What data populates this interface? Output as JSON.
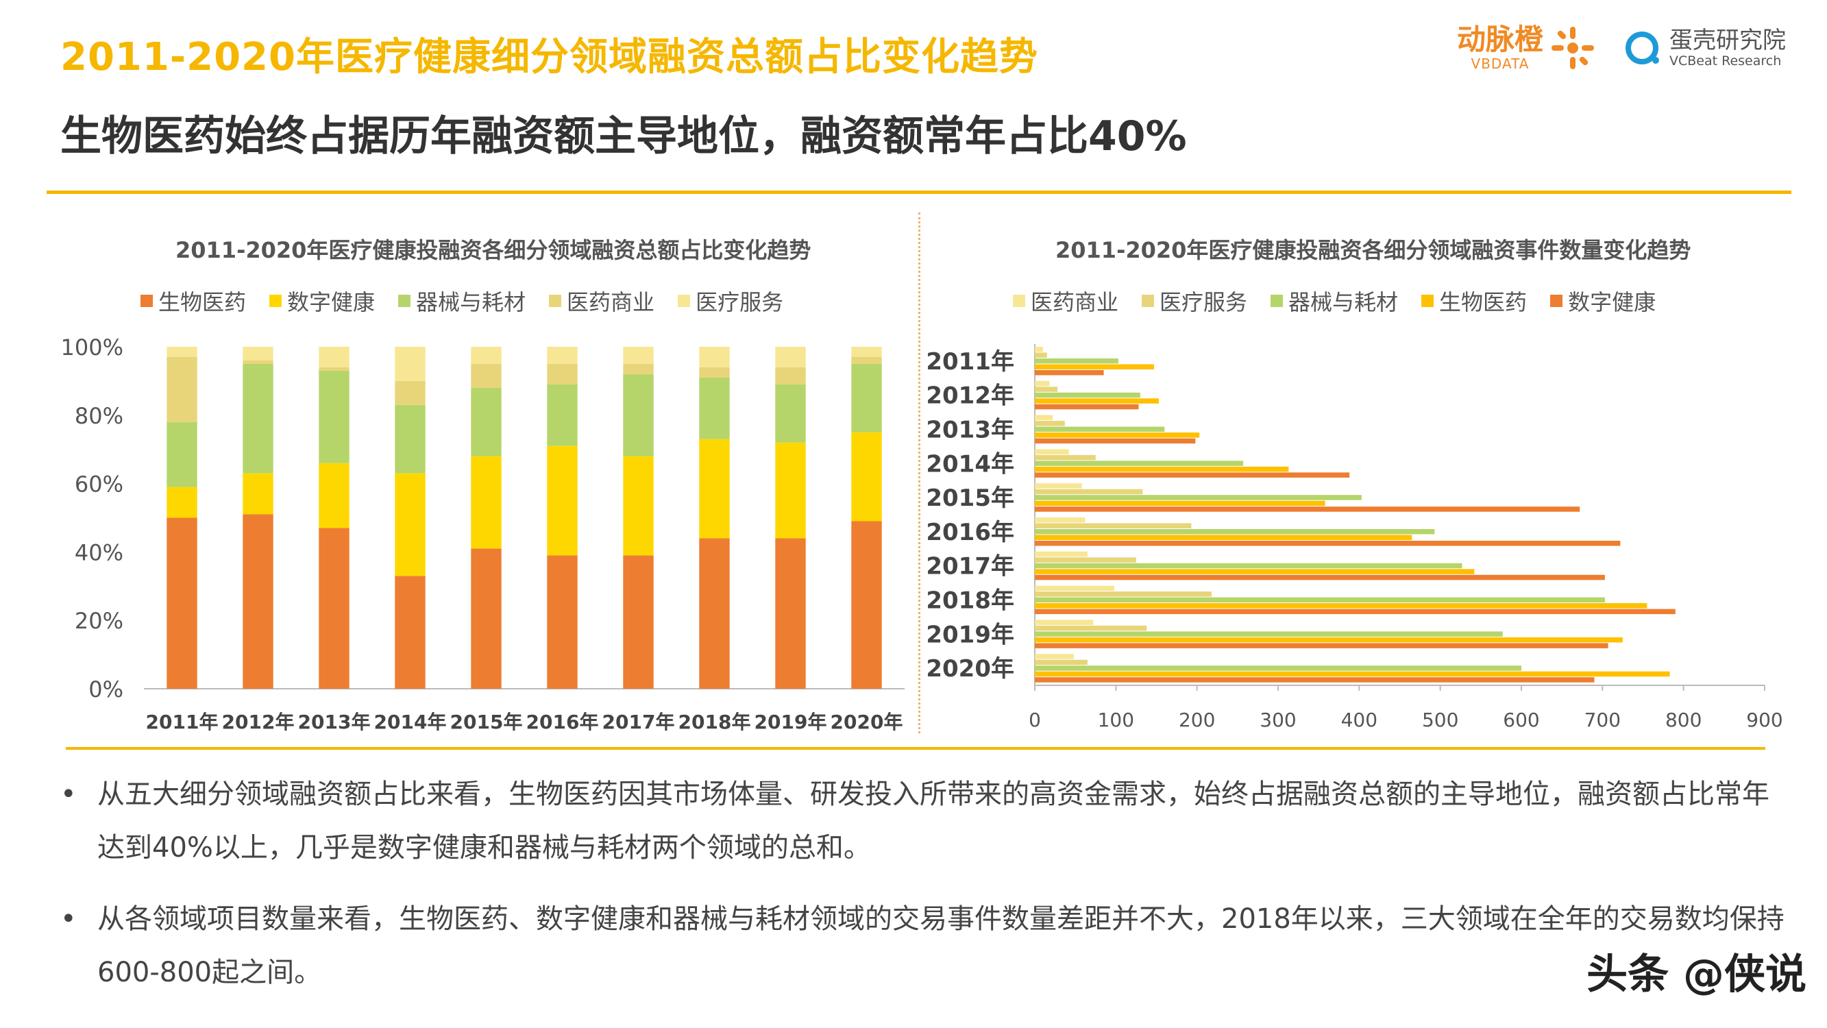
{
  "header": {
    "title": "2011-2020年医疗健康细分领域融资总额占比变化趋势",
    "subtitle": "生物医药始终占据历年融资额主导地位，融资额常年占比40%"
  },
  "logos": {
    "logo1_cn": "动脉橙",
    "logo1_en": "VBDATA",
    "logo2_cn": "蛋壳研究院",
    "logo2_en": "VCBeat Research"
  },
  "colors": {
    "accent": "#F5B700",
    "bio": "#ED7D31",
    "digital": "#FFD700",
    "device": "#B5D56A",
    "commerce": "#E8D57A",
    "service": "#F7E694"
  },
  "chart_data": [
    {
      "type": "bar",
      "stacked": true,
      "percent": true,
      "title": "2011-2020年医疗健康投融资各细分领域融资总额占比变化趋势",
      "categories": [
        "2011年",
        "2012年",
        "2013年",
        "2014年",
        "2015年",
        "2016年",
        "2017年",
        "2018年",
        "2019年",
        "2020年"
      ],
      "ylim": [
        0,
        100
      ],
      "yticks": [
        "0%",
        "20%",
        "40%",
        "60%",
        "80%",
        "100%"
      ],
      "series": [
        {
          "name": "生物医药",
          "values": [
            50,
            51,
            47,
            33,
            41,
            39,
            39,
            44,
            44,
            49
          ]
        },
        {
          "name": "数字健康",
          "values": [
            9,
            12,
            19,
            30,
            27,
            32,
            29,
            29,
            28,
            26
          ]
        },
        {
          "name": "器械与耗材",
          "values": [
            19,
            32,
            27,
            20,
            20,
            18,
            24,
            18,
            17,
            20
          ]
        },
        {
          "name": "医药商业",
          "values": [
            19,
            1,
            1,
            7,
            7,
            6,
            3,
            3,
            5,
            2
          ]
        },
        {
          "name": "医疗服务",
          "values": [
            3,
            4,
            6,
            10,
            5,
            5,
            5,
            6,
            6,
            3
          ]
        }
      ],
      "legend": [
        "生物医药",
        "数字健康",
        "器械与耗材",
        "医药商业",
        "医疗服务"
      ]
    },
    {
      "type": "bar",
      "orientation": "horizontal",
      "title": "2011-2020年医疗健康投融资各细分领域融资事件数量变化趋势",
      "categories": [
        "2011年",
        "2012年",
        "2013年",
        "2014年",
        "2015年",
        "2016年",
        "2017年",
        "2018年",
        "2019年",
        "2020年"
      ],
      "xlim": [
        0,
        900
      ],
      "xticks": [
        "0",
        "100",
        "200",
        "300",
        "400",
        "500",
        "600",
        "700",
        "800",
        "900"
      ],
      "series": [
        {
          "name": "医药商业",
          "values": [
            10,
            18,
            22,
            42,
            58,
            62,
            65,
            98,
            72,
            48
          ]
        },
        {
          "name": "医疗服务",
          "values": [
            15,
            28,
            37,
            75,
            133,
            193,
            125,
            218,
            138,
            65
          ]
        },
        {
          "name": "器械与耗材",
          "values": [
            103,
            130,
            160,
            257,
            403,
            493,
            527,
            703,
            577,
            600
          ]
        },
        {
          "name": "生物医药",
          "values": [
            147,
            153,
            203,
            313,
            358,
            465,
            542,
            755,
            725,
            783
          ]
        },
        {
          "name": "数字健康",
          "values": [
            85,
            128,
            198,
            388,
            672,
            722,
            703,
            790,
            707,
            690
          ]
        }
      ],
      "legend": [
        "医药商业",
        "医疗服务",
        "器械与耗材",
        "生物医药",
        "数字健康"
      ]
    }
  ],
  "bullets": [
    "从五大细分领域融资额占比来看，生物医药因其市场体量、研发投入所带来的高资金需求，始终占据融资总额的主导地位，融资额占比常年达到40%以上，几乎是数字健康和器械与耗材两个领域的总和。",
    "从各领域项目数量来看，生物医药、数字健康和器械与耗材领域的交易事件数量差距并不大，2018年以来，三大领域在全年的交易数均保持600-800起之间。"
  ],
  "watermark": "头条 @侠说"
}
